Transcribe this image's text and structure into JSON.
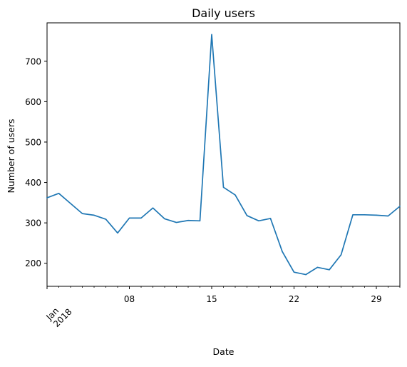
{
  "chart_data": {
    "type": "line",
    "title": "Daily users",
    "xlabel": "Date",
    "ylabel": "Number of users",
    "x_start": "2018-01-01",
    "x": [
      "2018-01-01",
      "2018-01-02",
      "2018-01-03",
      "2018-01-04",
      "2018-01-05",
      "2018-01-06",
      "2018-01-07",
      "2018-01-08",
      "2018-01-09",
      "2018-01-10",
      "2018-01-11",
      "2018-01-12",
      "2018-01-13",
      "2018-01-14",
      "2018-01-15",
      "2018-01-16",
      "2018-01-17",
      "2018-01-18",
      "2018-01-19",
      "2018-01-20",
      "2018-01-21",
      "2018-01-22",
      "2018-01-23",
      "2018-01-24",
      "2018-01-25",
      "2018-01-26",
      "2018-01-27",
      "2018-01-28",
      "2018-01-29",
      "2018-01-30",
      "2018-01-31"
    ],
    "series": [
      {
        "color": "#1f77b4",
        "values": [
          362,
          373,
          348,
          323,
          319,
          309,
          275,
          312,
          312,
          337,
          310,
          301,
          306,
          305,
          766,
          388,
          369,
          318,
          305,
          311,
          229,
          178,
          172,
          190,
          184,
          221,
          320,
          320,
          319,
          317,
          341
        ]
      }
    ],
    "xlim": [
      "2018-01-01",
      "2018-01-31"
    ],
    "ylim": [
      143,
      795
    ],
    "y_ticks": [
      200,
      300,
      400,
      500,
      600,
      700
    ],
    "x_ticks": [
      {
        "date": "2018-01-01",
        "label": "Jan\n2018"
      },
      {
        "date": "2018-01-08",
        "label": "08"
      },
      {
        "date": "2018-01-15",
        "label": "15"
      },
      {
        "date": "2018-01-22",
        "label": "22"
      },
      {
        "date": "2018-01-29",
        "label": "29"
      }
    ],
    "grid": false,
    "legend": "none"
  }
}
